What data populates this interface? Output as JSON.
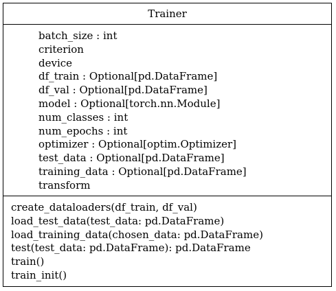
{
  "class": {
    "name": "Trainer",
    "attributes": [
      "batch_size : int",
      "criterion",
      "device",
      "df_train : Optional[pd.DataFrame]",
      "df_val : Optional[pd.DataFrame]",
      "model : Optional[torch.nn.Module]",
      "num_classes : int",
      "num_epochs : int",
      "optimizer : Optional[optim.Optimizer]",
      "test_data : Optional[pd.DataFrame]",
      "training_data : Optional[pd.DataFrame]",
      "transform"
    ],
    "methods": [
      "create_dataloaders(df_train, df_val)",
      "load_test_data(test_data: pd.DataFrame)",
      "load_training_data(chosen_data: pd.DataFrame)",
      "test(test_data: pd.DataFrame): pd.DataFrame",
      "train()",
      "train_init()"
    ]
  }
}
